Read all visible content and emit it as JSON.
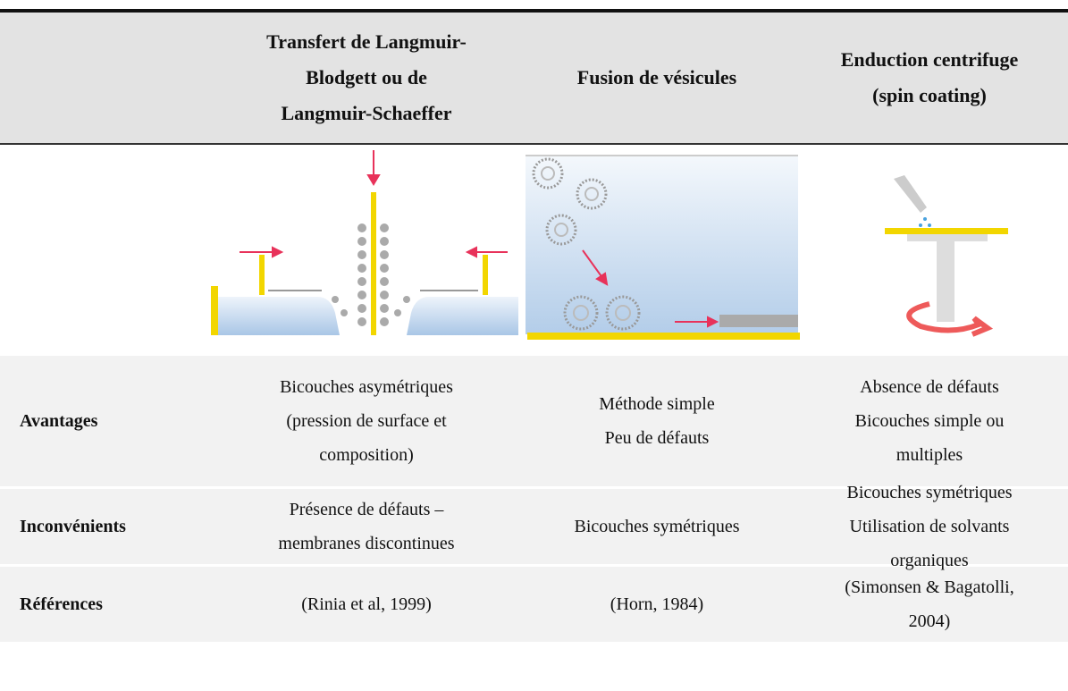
{
  "header": {
    "columns": [
      [
        "Transfert de Langmuir-",
        "Blodgett ou de",
        "Langmuir-Schaeffer"
      ],
      [
        "Fusion de vésicules"
      ],
      [
        "Enduction centrifuge",
        "(spin coating)"
      ]
    ]
  },
  "rows": [
    {
      "label": "Avantages",
      "cells": [
        [
          "Bicouches asymétriques",
          "(pression de surface et",
          "composition)"
        ],
        [
          "Méthode simple",
          "Peu de défauts"
        ],
        [
          "Absence de défauts",
          "Bicouches simple ou",
          "multiples"
        ]
      ]
    },
    {
      "label": "Inconvénients",
      "cells": [
        [
          "Présence de défauts –",
          "membranes discontinues"
        ],
        [
          "Bicouches symétriques"
        ],
        [
          "Bicouches symétriques",
          "Utilisation de solvants",
          "organiques"
        ]
      ]
    },
    {
      "label": "Références",
      "cells": [
        [
          "(Rinia et al, 1999)"
        ],
        [
          "(Horn, 1984)"
        ],
        [
          "(Simonsen & Bagatolli,",
          "2004)"
        ]
      ]
    }
  ]
}
